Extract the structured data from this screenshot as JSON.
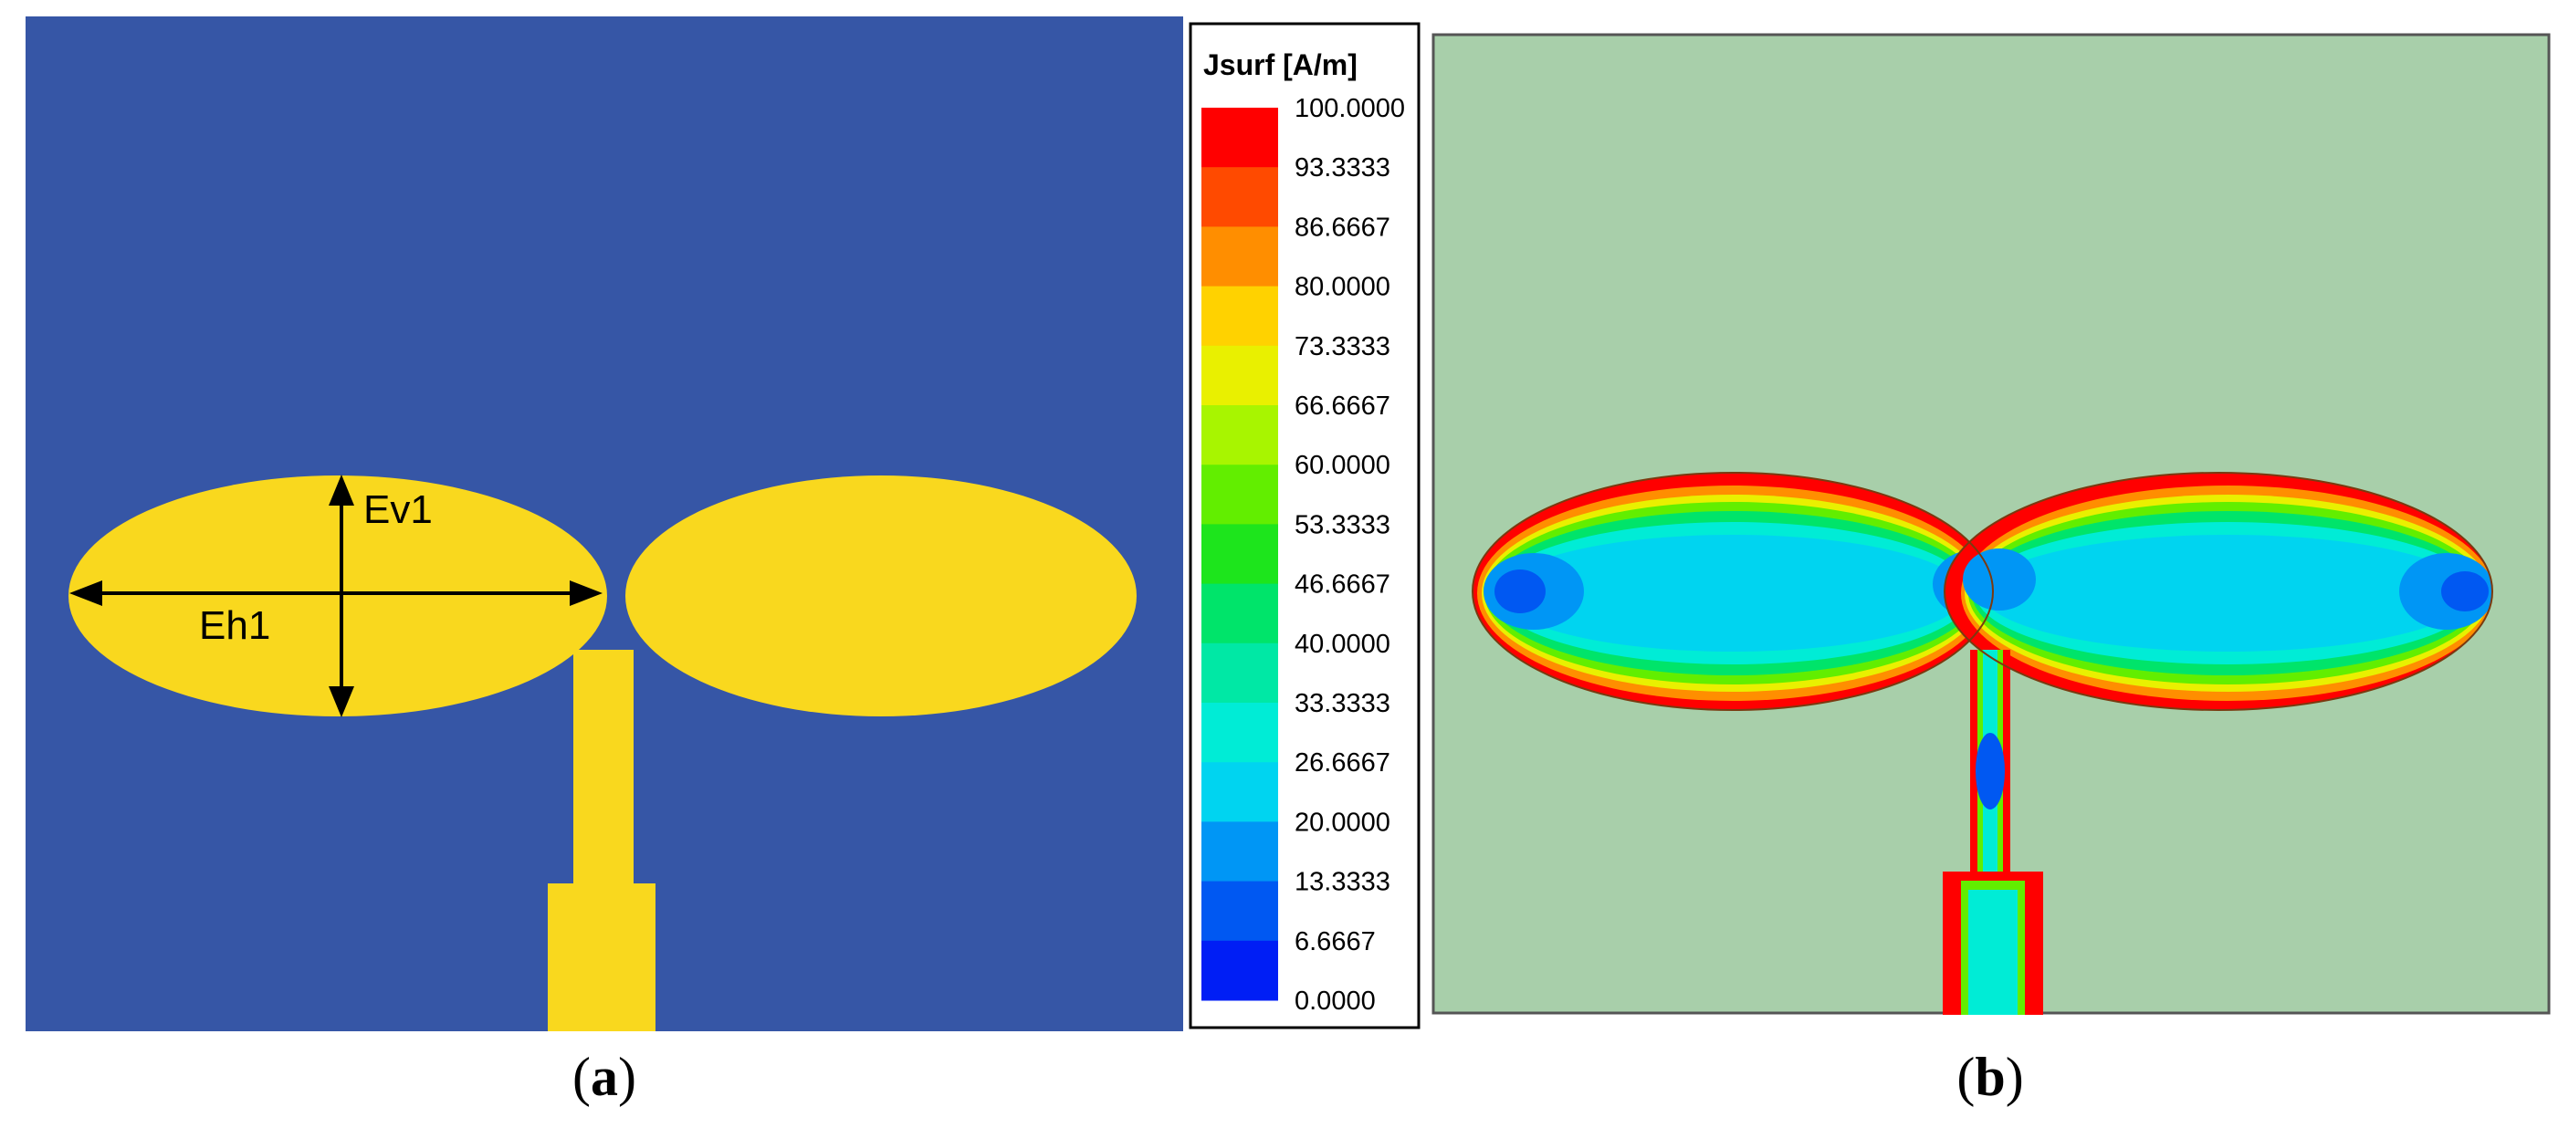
{
  "colors": {
    "substrate": "#3656A6",
    "copper": "#F9D81E",
    "simulation_background": "#A8CFAA",
    "arrow": "#000000"
  },
  "panel_a": {
    "caption_open": "(",
    "caption_letter": "a",
    "caption_close": ")",
    "labels": {
      "ev1": "Ev1",
      "eh1": "Eh1"
    }
  },
  "panel_b": {
    "caption_open": "(",
    "caption_letter": "b",
    "caption_close": ")"
  },
  "legend": {
    "title": "Jsurf [A/m]",
    "ticks": [
      "100.0000",
      "93.3333",
      "86.6667",
      "80.0000",
      "73.3333",
      "66.6667",
      "60.0000",
      "53.3333",
      "46.6667",
      "40.0000",
      "33.3333",
      "26.6667",
      "20.0000",
      "13.3333",
      "6.6667",
      "0.0000"
    ],
    "colors": [
      "#FF0000",
      "#FF4A00",
      "#FF8E00",
      "#FFD200",
      "#E9F000",
      "#A8F500",
      "#62EE00",
      "#1DE51C",
      "#00E46A",
      "#00E8A5",
      "#00ECD6",
      "#00D4F0",
      "#0096F5",
      "#0058F2",
      "#001EF5"
    ]
  }
}
